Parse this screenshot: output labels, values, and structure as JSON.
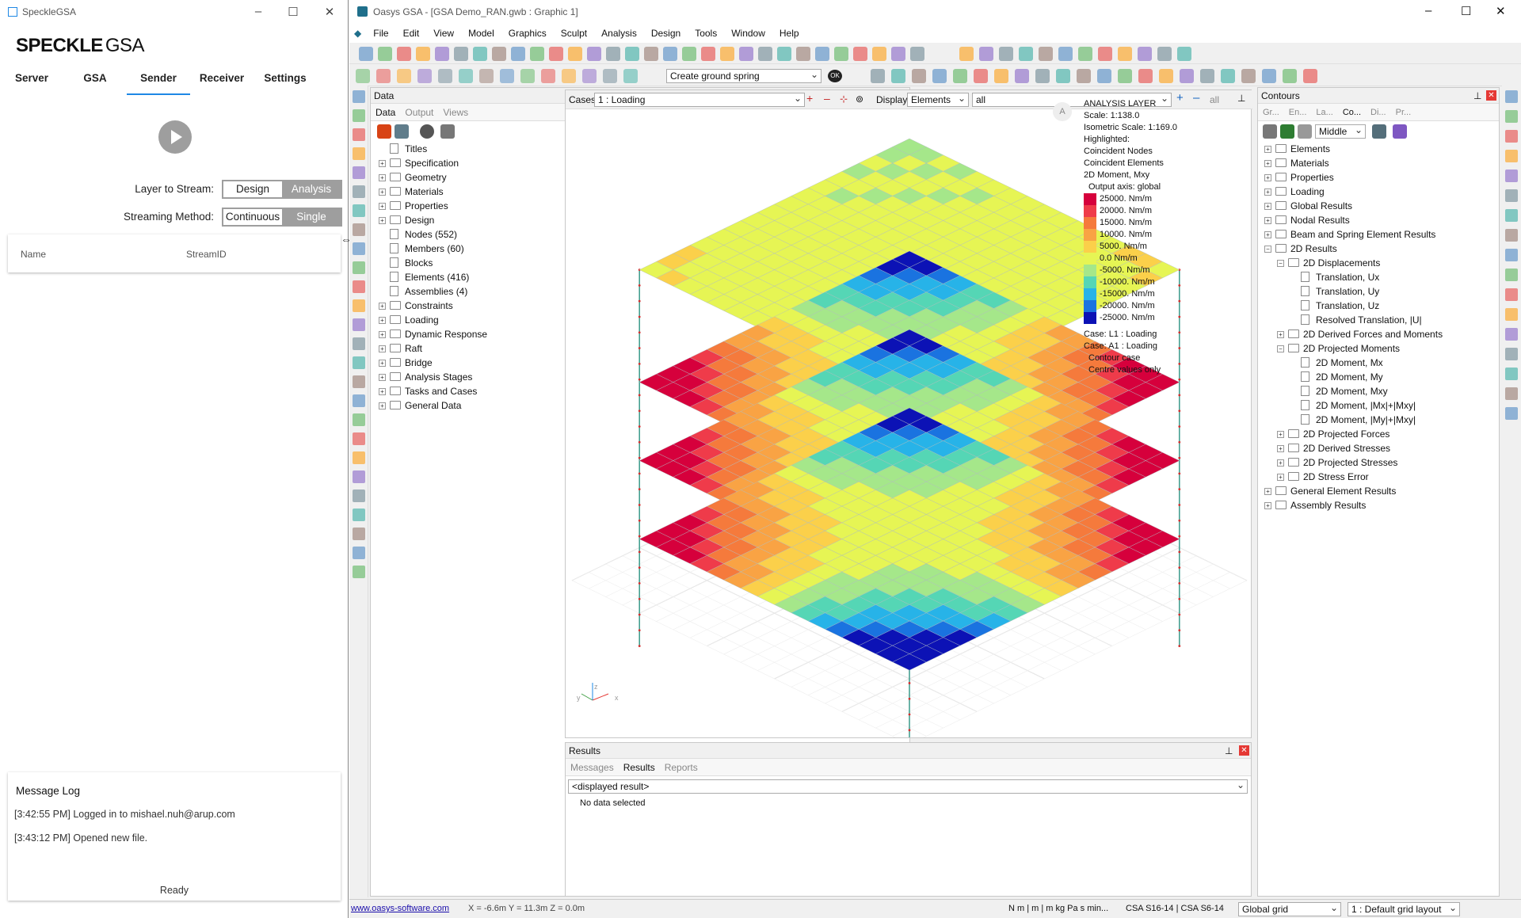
{
  "speckle": {
    "window_title": "SpeckleGSA",
    "logo_bold": "SPECKLE",
    "logo_light": "GSA",
    "tabs": [
      "Server",
      "GSA",
      "Sender",
      "Receiver",
      "Settings"
    ],
    "active_tab": "Sender",
    "layer_label": "Layer to Stream:",
    "layer_options": [
      "Design",
      "Analysis"
    ],
    "method_label": "Streaming Method:",
    "method_options": [
      "Continuous",
      "Single"
    ],
    "table_headers": [
      "Name",
      "StreamID"
    ],
    "log_title": "Message Log",
    "log": [
      "[3:42:55 PM] Logged in to mishael.nuh@arup.com",
      "[3:43:12 PM] Opened new file."
    ],
    "status": "Ready"
  },
  "gsa": {
    "window_title": "Oasys GSA - [GSA Demo_RAN.gwb : Graphic 1]",
    "menu": [
      "File",
      "Edit",
      "View",
      "Model",
      "Graphics",
      "Sculpt",
      "Analysis",
      "Design",
      "Tools",
      "Window",
      "Help"
    ],
    "toolbar_combo": "Create ground spring",
    "toolbar_ok": "OK",
    "data_panel": {
      "title": "Data",
      "tabs": [
        "Data",
        "Output",
        "Views"
      ],
      "items": [
        {
          "label": "Titles",
          "exp": false,
          "icon": "doc"
        },
        {
          "label": "Specification",
          "exp": true,
          "icon": "folder"
        },
        {
          "label": "Geometry",
          "exp": true,
          "icon": "folder"
        },
        {
          "label": "Materials",
          "exp": true,
          "icon": "folder"
        },
        {
          "label": "Properties",
          "exp": true,
          "icon": "folder"
        },
        {
          "label": "Design",
          "exp": true,
          "icon": "folder"
        },
        {
          "label": "Nodes (552)",
          "exp": false,
          "icon": "doc"
        },
        {
          "label": "Members (60)",
          "exp": false,
          "icon": "doc"
        },
        {
          "label": "Blocks",
          "exp": false,
          "icon": "doc"
        },
        {
          "label": "Elements (416)",
          "exp": false,
          "icon": "doc"
        },
        {
          "label": "Assemblies (4)",
          "exp": false,
          "icon": "doc"
        },
        {
          "label": "Constraints",
          "exp": true,
          "icon": "folder"
        },
        {
          "label": "Loading",
          "exp": true,
          "icon": "folder"
        },
        {
          "label": "Dynamic Response",
          "exp": true,
          "icon": "folder"
        },
        {
          "label": "Raft",
          "exp": true,
          "icon": "folder"
        },
        {
          "label": "Bridge",
          "exp": true,
          "icon": "folder"
        },
        {
          "label": "Analysis Stages",
          "exp": true,
          "icon": "folder"
        },
        {
          "label": "Tasks and Cases",
          "exp": true,
          "icon": "folder"
        },
        {
          "label": "General Data",
          "exp": true,
          "icon": "folder"
        }
      ]
    },
    "cases_bar": {
      "label": "Cases",
      "case": "1 : Loading",
      "display_label": "Display",
      "display": "Elements",
      "filter": "all",
      "all_label": "all"
    },
    "legend": {
      "lines": [
        "ANALYSIS LAYER",
        "Scale: 1:138.0",
        "Isometric Scale: 1:169.0",
        "Highlighted:",
        "Coincident Nodes",
        "Coincident Elements",
        "2D Moment, Mxy",
        "Output axis: global"
      ],
      "scale": [
        {
          "label": "25000. Nm/m",
          "color": "#d6003c"
        },
        {
          "label": "20000. Nm/m",
          "color": "#ef3b4a"
        },
        {
          "label": "15000. Nm/m",
          "color": "#f57a3c"
        },
        {
          "label": "10000. Nm/m",
          "color": "#f9a344"
        },
        {
          "label": "5000. Nm/m",
          "color": "#fbd04a"
        },
        {
          "label": "0.0 Nm/m",
          "color": "#e6f554"
        },
        {
          "label": "-5000. Nm/m",
          "color": "#a5e78a"
        },
        {
          "label": "-10000. Nm/m",
          "color": "#55d6b5"
        },
        {
          "label": "-15000. Nm/m",
          "color": "#27b3e8"
        },
        {
          "label": "-20000. Nm/m",
          "color": "#1a73e0"
        },
        {
          "label": "-25000. Nm/m",
          "color": "#0c12b5"
        }
      ],
      "footer": [
        "Case: L1 : Loading",
        "Case: A1 : Loading",
        "Contour case",
        "Centre values only"
      ]
    },
    "results_panel": {
      "title": "Results",
      "tabs": [
        "Messages",
        "Results",
        "Reports"
      ],
      "combo": "<displayed result>",
      "body": "No data selected"
    },
    "contours_panel": {
      "title": "Contours",
      "tabs": [
        "Gr...",
        "En...",
        "La...",
        "Co...",
        "Di...",
        "Pr..."
      ],
      "position": "Middle",
      "items": [
        {
          "label": "Elements",
          "lvl": 0,
          "exp": "+",
          "icon": "folder"
        },
        {
          "label": "Materials",
          "lvl": 0,
          "exp": "+",
          "icon": "folder"
        },
        {
          "label": "Properties",
          "lvl": 0,
          "exp": "+",
          "icon": "folder"
        },
        {
          "label": "Loading",
          "lvl": 0,
          "exp": "+",
          "icon": "folder"
        },
        {
          "label": "Global Results",
          "lvl": 0,
          "exp": "+",
          "icon": "folder"
        },
        {
          "label": "Nodal Results",
          "lvl": 0,
          "exp": "+",
          "icon": "folder"
        },
        {
          "label": "Beam and Spring Element Results",
          "lvl": 0,
          "exp": "+",
          "icon": "folder"
        },
        {
          "label": "2D Results",
          "lvl": 0,
          "exp": "-",
          "icon": "folder"
        },
        {
          "label": "2D Displacements",
          "lvl": 1,
          "exp": "-",
          "icon": "folder"
        },
        {
          "label": "Translation, Ux",
          "lvl": 2,
          "exp": "",
          "icon": "doc"
        },
        {
          "label": "Translation, Uy",
          "lvl": 2,
          "exp": "",
          "icon": "doc"
        },
        {
          "label": "Translation, Uz",
          "lvl": 2,
          "exp": "",
          "icon": "doc"
        },
        {
          "label": "Resolved Translation, |U|",
          "lvl": 2,
          "exp": "",
          "icon": "doc"
        },
        {
          "label": "2D Derived Forces and Moments",
          "lvl": 1,
          "exp": "+",
          "icon": "folder"
        },
        {
          "label": "2D Projected Moments",
          "lvl": 1,
          "exp": "-",
          "icon": "folder"
        },
        {
          "label": "2D Moment, Mx",
          "lvl": 2,
          "exp": "",
          "icon": "doc"
        },
        {
          "label": "2D Moment, My",
          "lvl": 2,
          "exp": "",
          "icon": "doc"
        },
        {
          "label": "2D Moment, Mxy",
          "lvl": 2,
          "exp": "",
          "icon": "doc"
        },
        {
          "label": "2D Moment, |Mx|+|Mxy|",
          "lvl": 2,
          "exp": "",
          "icon": "doc"
        },
        {
          "label": "2D Moment, |My|+|Mxy|",
          "lvl": 2,
          "exp": "",
          "icon": "doc"
        },
        {
          "label": "2D Projected Forces",
          "lvl": 1,
          "exp": "+",
          "icon": "folder"
        },
        {
          "label": "2D Derived Stresses",
          "lvl": 1,
          "exp": "+",
          "icon": "folder"
        },
        {
          "label": "2D Projected Stresses",
          "lvl": 1,
          "exp": "+",
          "icon": "folder"
        },
        {
          "label": "2D Stress Error",
          "lvl": 1,
          "exp": "+",
          "icon": "folder"
        },
        {
          "label": "General Element Results",
          "lvl": 0,
          "exp": "+",
          "icon": "folder"
        },
        {
          "label": "Assembly Results",
          "lvl": 0,
          "exp": "+",
          "icon": "folder"
        }
      ]
    },
    "status": {
      "link": "www.oasys-software.com",
      "coords": "X = -6.6m   Y = 11.3m   Z = 0.0m",
      "units": "N  m | m | m  kg  Pa  s  min...",
      "codes": "CSA S16-14 | CSA S6-14",
      "grid": "Global grid",
      "grid_layout": "1 : Default grid layout"
    },
    "axis_labels": [
      "z",
      "y",
      "x"
    ],
    "badge": "A"
  }
}
